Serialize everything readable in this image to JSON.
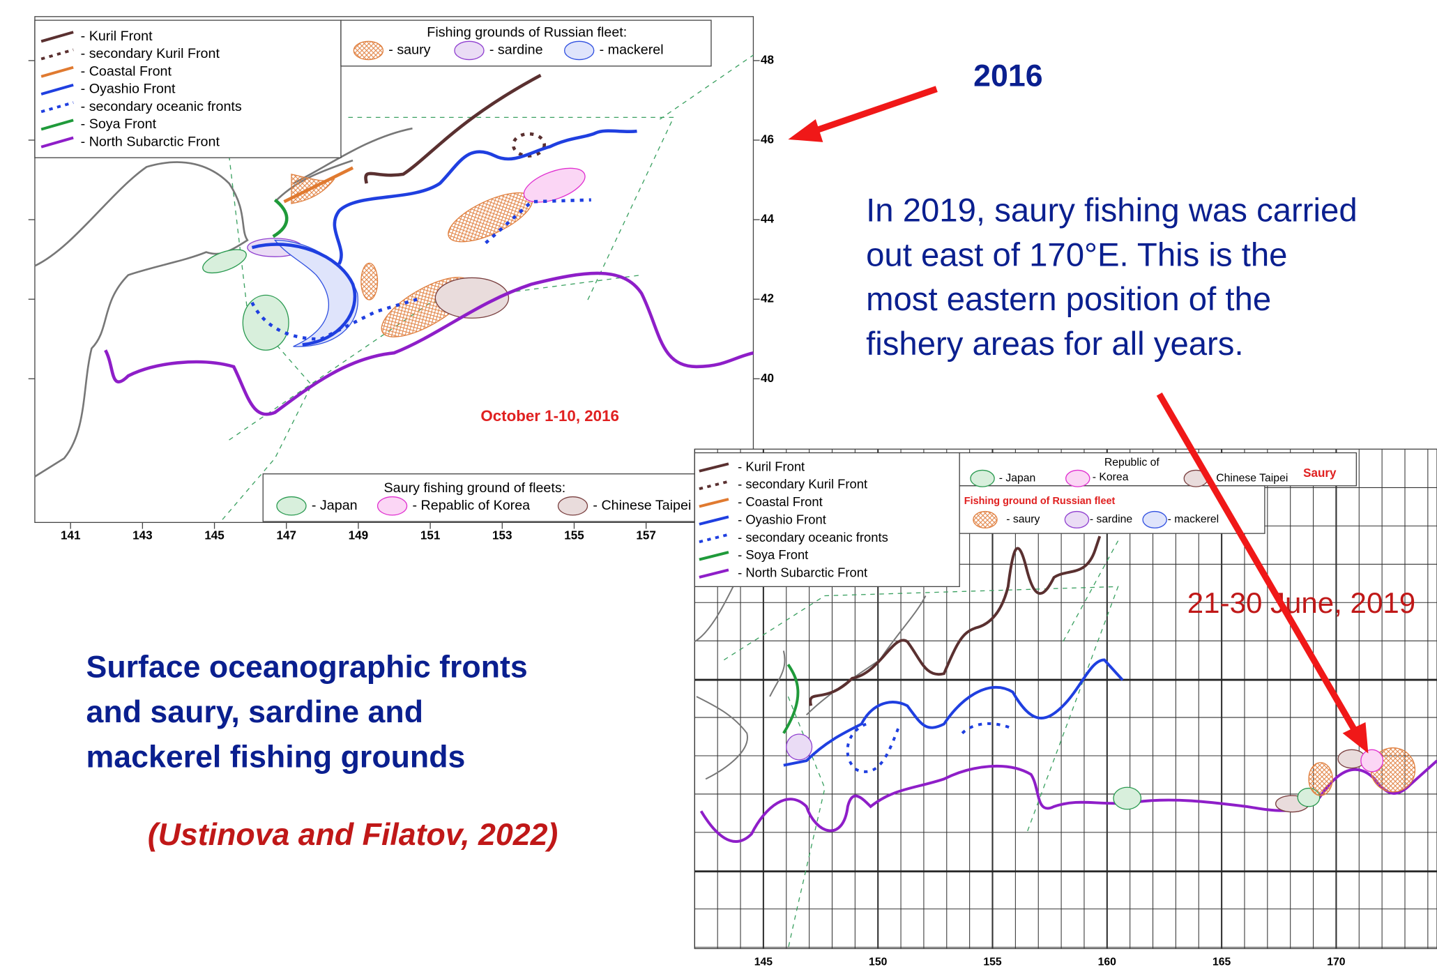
{
  "map_2016": {
    "legend": [
      {
        "label": "- Kuril Front",
        "color": "#5a3030",
        "dashed": false
      },
      {
        "label": "- secondary Kuril Front",
        "color": "#5a3030",
        "dashed": true
      },
      {
        "label": "- Coastal Front",
        "color": "#e07a30",
        "dashed": false
      },
      {
        "label": "- Oyashio Front",
        "color": "#1f3fe0",
        "dashed": false
      },
      {
        "label": "- secondary oceanic fronts",
        "color": "#1f3fe0",
        "dashed": true
      },
      {
        "label": "- Soya Front",
        "color": "#1f9a3a",
        "dashed": false
      },
      {
        "label": "- North Subarctic Front",
        "color": "#8e1ec8",
        "dashed": false
      }
    ],
    "russian_fleet_title": "Fishing grounds of Russian fleet:",
    "russian_fleet": [
      "- saury",
      "- sardine",
      "- mackerel"
    ],
    "fleets_title": "Saury fishing ground of fleets:",
    "fleets": [
      "- Japan",
      "- Repablic of Korea",
      "- Chinese Taipei"
    ],
    "date": "October 1-10, 2016",
    "xticks": [
      141,
      143,
      145,
      147,
      149,
      151,
      153,
      155,
      157
    ],
    "yticks": [
      48,
      46,
      44,
      42,
      40
    ]
  },
  "map_2019": {
    "legend": [
      {
        "label": "- Kuril Front",
        "color": "#5a3030",
        "dashed": false
      },
      {
        "label": "- secondary Kuril Front",
        "color": "#5a3030",
        "dashed": true
      },
      {
        "label": "- Coastal Front",
        "color": "#e07a30",
        "dashed": false
      },
      {
        "label": "- Oyashio Front",
        "color": "#1f3fe0",
        "dashed": false
      },
      {
        "label": "- secondary oceanic fronts",
        "color": "#1f3fe0",
        "dashed": true
      },
      {
        "label": "- Soya Front",
        "color": "#1f9a3a",
        "dashed": false
      },
      {
        "label": "- North Subarctic Front",
        "color": "#8e1ec8",
        "dashed": false
      }
    ],
    "fleets": [
      "- Japan",
      "Republic of",
      "- Korea",
      "Chinese Taipei"
    ],
    "species": "Saury",
    "russian_fleet_title": "Fishing ground of Russian fleet",
    "russian_fleet": [
      "- saury",
      "- sardine",
      "- mackerel"
    ],
    "date": "21-30 June, 2019",
    "xticks": [
      145,
      150,
      155,
      160,
      165,
      170
    ]
  },
  "year_label": "2016",
  "note": [
    "In 2019, saury fishing was carried",
    "out east of 170°E. This is the",
    "most eastern position of the",
    "fishery areas for all years."
  ],
  "caption": [
    "Surface oceanographic fronts",
    "and saury, sardine and",
    "mackerel  fishing grounds"
  ],
  "citation": "(Ustinova and Filatov, 2022)"
}
